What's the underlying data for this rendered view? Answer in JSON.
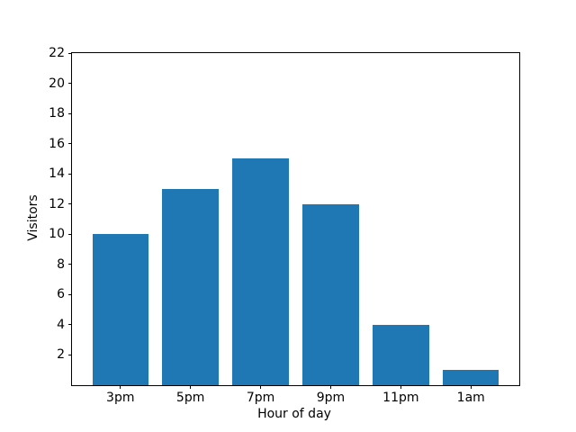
{
  "figure": {
    "background": "#ffffff",
    "text_color": "#000000",
    "spine_color": "#000000"
  },
  "chart_data": {
    "type": "bar",
    "categories": [
      "3pm",
      "5pm",
      "7pm",
      "9pm",
      "11pm",
      "1am"
    ],
    "values": [
      10,
      13,
      15,
      12,
      4,
      1
    ],
    "title": "",
    "xlabel": "Hour of day",
    "ylabel": "Visitors",
    "ylim": [
      0,
      22
    ],
    "yticks": [
      2,
      4,
      6,
      8,
      10,
      12,
      14,
      16,
      18,
      20,
      22
    ],
    "bar_color": "#1f77b4",
    "bar_width_frac": 0.8,
    "grid": false,
    "legend": false
  }
}
